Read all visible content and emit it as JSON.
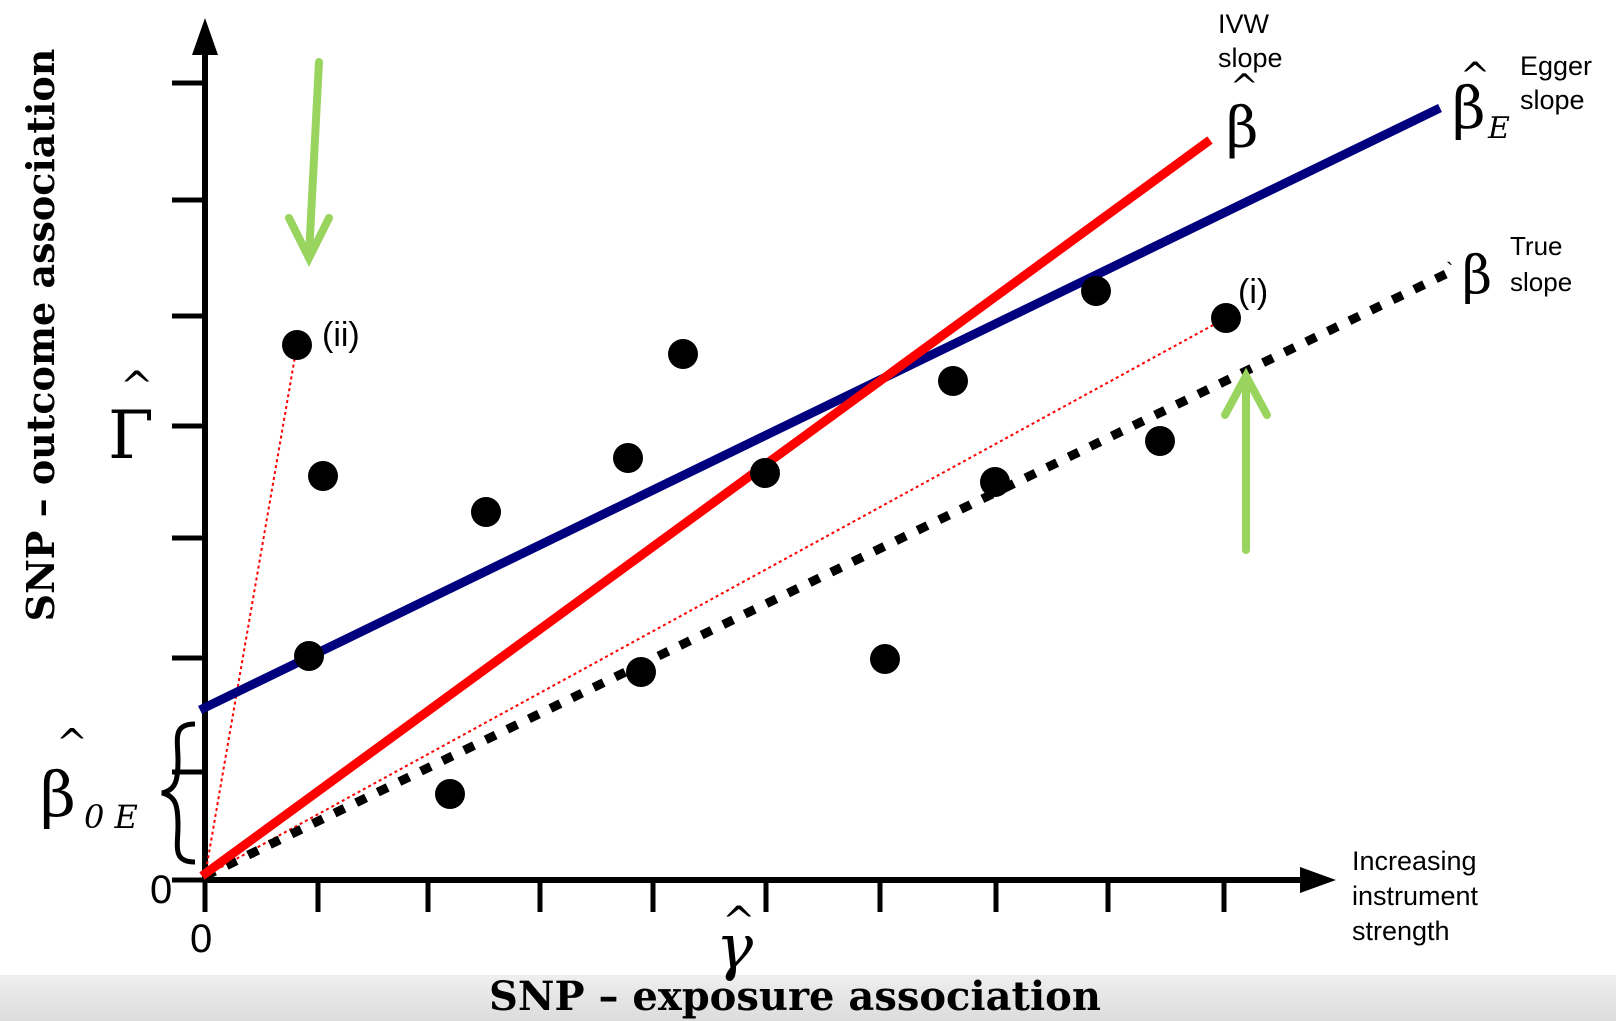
{
  "axes": {
    "y_axis_label": "SNP – outcome association",
    "x_axis_label": "SNP – exposure association",
    "x_origin_label": "0",
    "y_origin_label": "0",
    "x_axis_end_label": [
      "Increasing",
      "instrument",
      "strength"
    ],
    "y_hat_symbol": "Γ",
    "x_hat_symbol": "γ"
  },
  "lines": {
    "ivw": {
      "caption": [
        "IVW",
        "slope"
      ],
      "symbol": "β",
      "color": "#ff0000"
    },
    "egger": {
      "caption": [
        "Egger",
        "slope"
      ],
      "symbol": "β",
      "subscript": "E",
      "color": "#00007f"
    },
    "true": {
      "caption": [
        "True",
        "slope"
      ],
      "symbol": "β",
      "color": "#000000"
    }
  },
  "intercept": {
    "symbol": "β",
    "subscript": "0 E"
  },
  "point_labels": {
    "i": "(i)",
    "ii": "(ii)"
  },
  "colors": {
    "arrow": "#99d45f",
    "point": "#000000",
    "guide": "#ff0000"
  }
}
